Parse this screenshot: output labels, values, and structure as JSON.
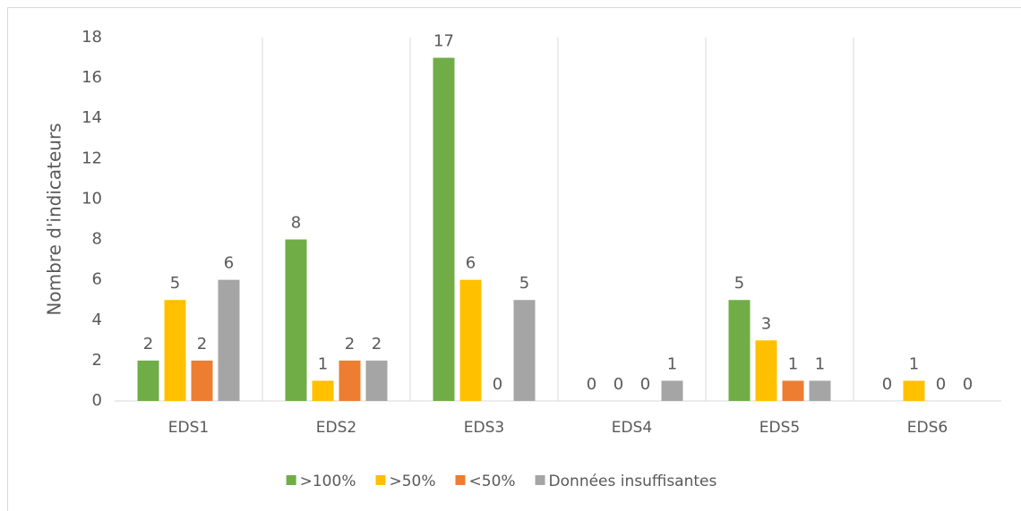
{
  "chart_data": {
    "type": "bar",
    "y_label": "Nombre d'indicateurs",
    "categories": [
      "EDS1",
      "EDS2",
      "EDS3",
      "EDS4",
      "EDS5",
      "EDS6"
    ],
    "series": [
      {
        "name": ">100%",
        "color": "#70ad47",
        "values": [
          2,
          8,
          17,
          0,
          5,
          0
        ]
      },
      {
        "name": ">50%",
        "color": "#ffc000",
        "values": [
          5,
          1,
          6,
          0,
          3,
          1
        ]
      },
      {
        "name": "<50%",
        "color": "#ed7d31",
        "values": [
          2,
          2,
          0,
          0,
          1,
          0
        ]
      },
      {
        "name": "Données insuffisantes",
        "color": "#a5a5a5",
        "values": [
          6,
          2,
          5,
          1,
          1,
          0
        ]
      }
    ],
    "ylim": [
      0,
      18
    ],
    "yticks": [
      0,
      2,
      4,
      6,
      8,
      10,
      12,
      14,
      16,
      18
    ],
    "grid": false,
    "legend": "bottom"
  }
}
